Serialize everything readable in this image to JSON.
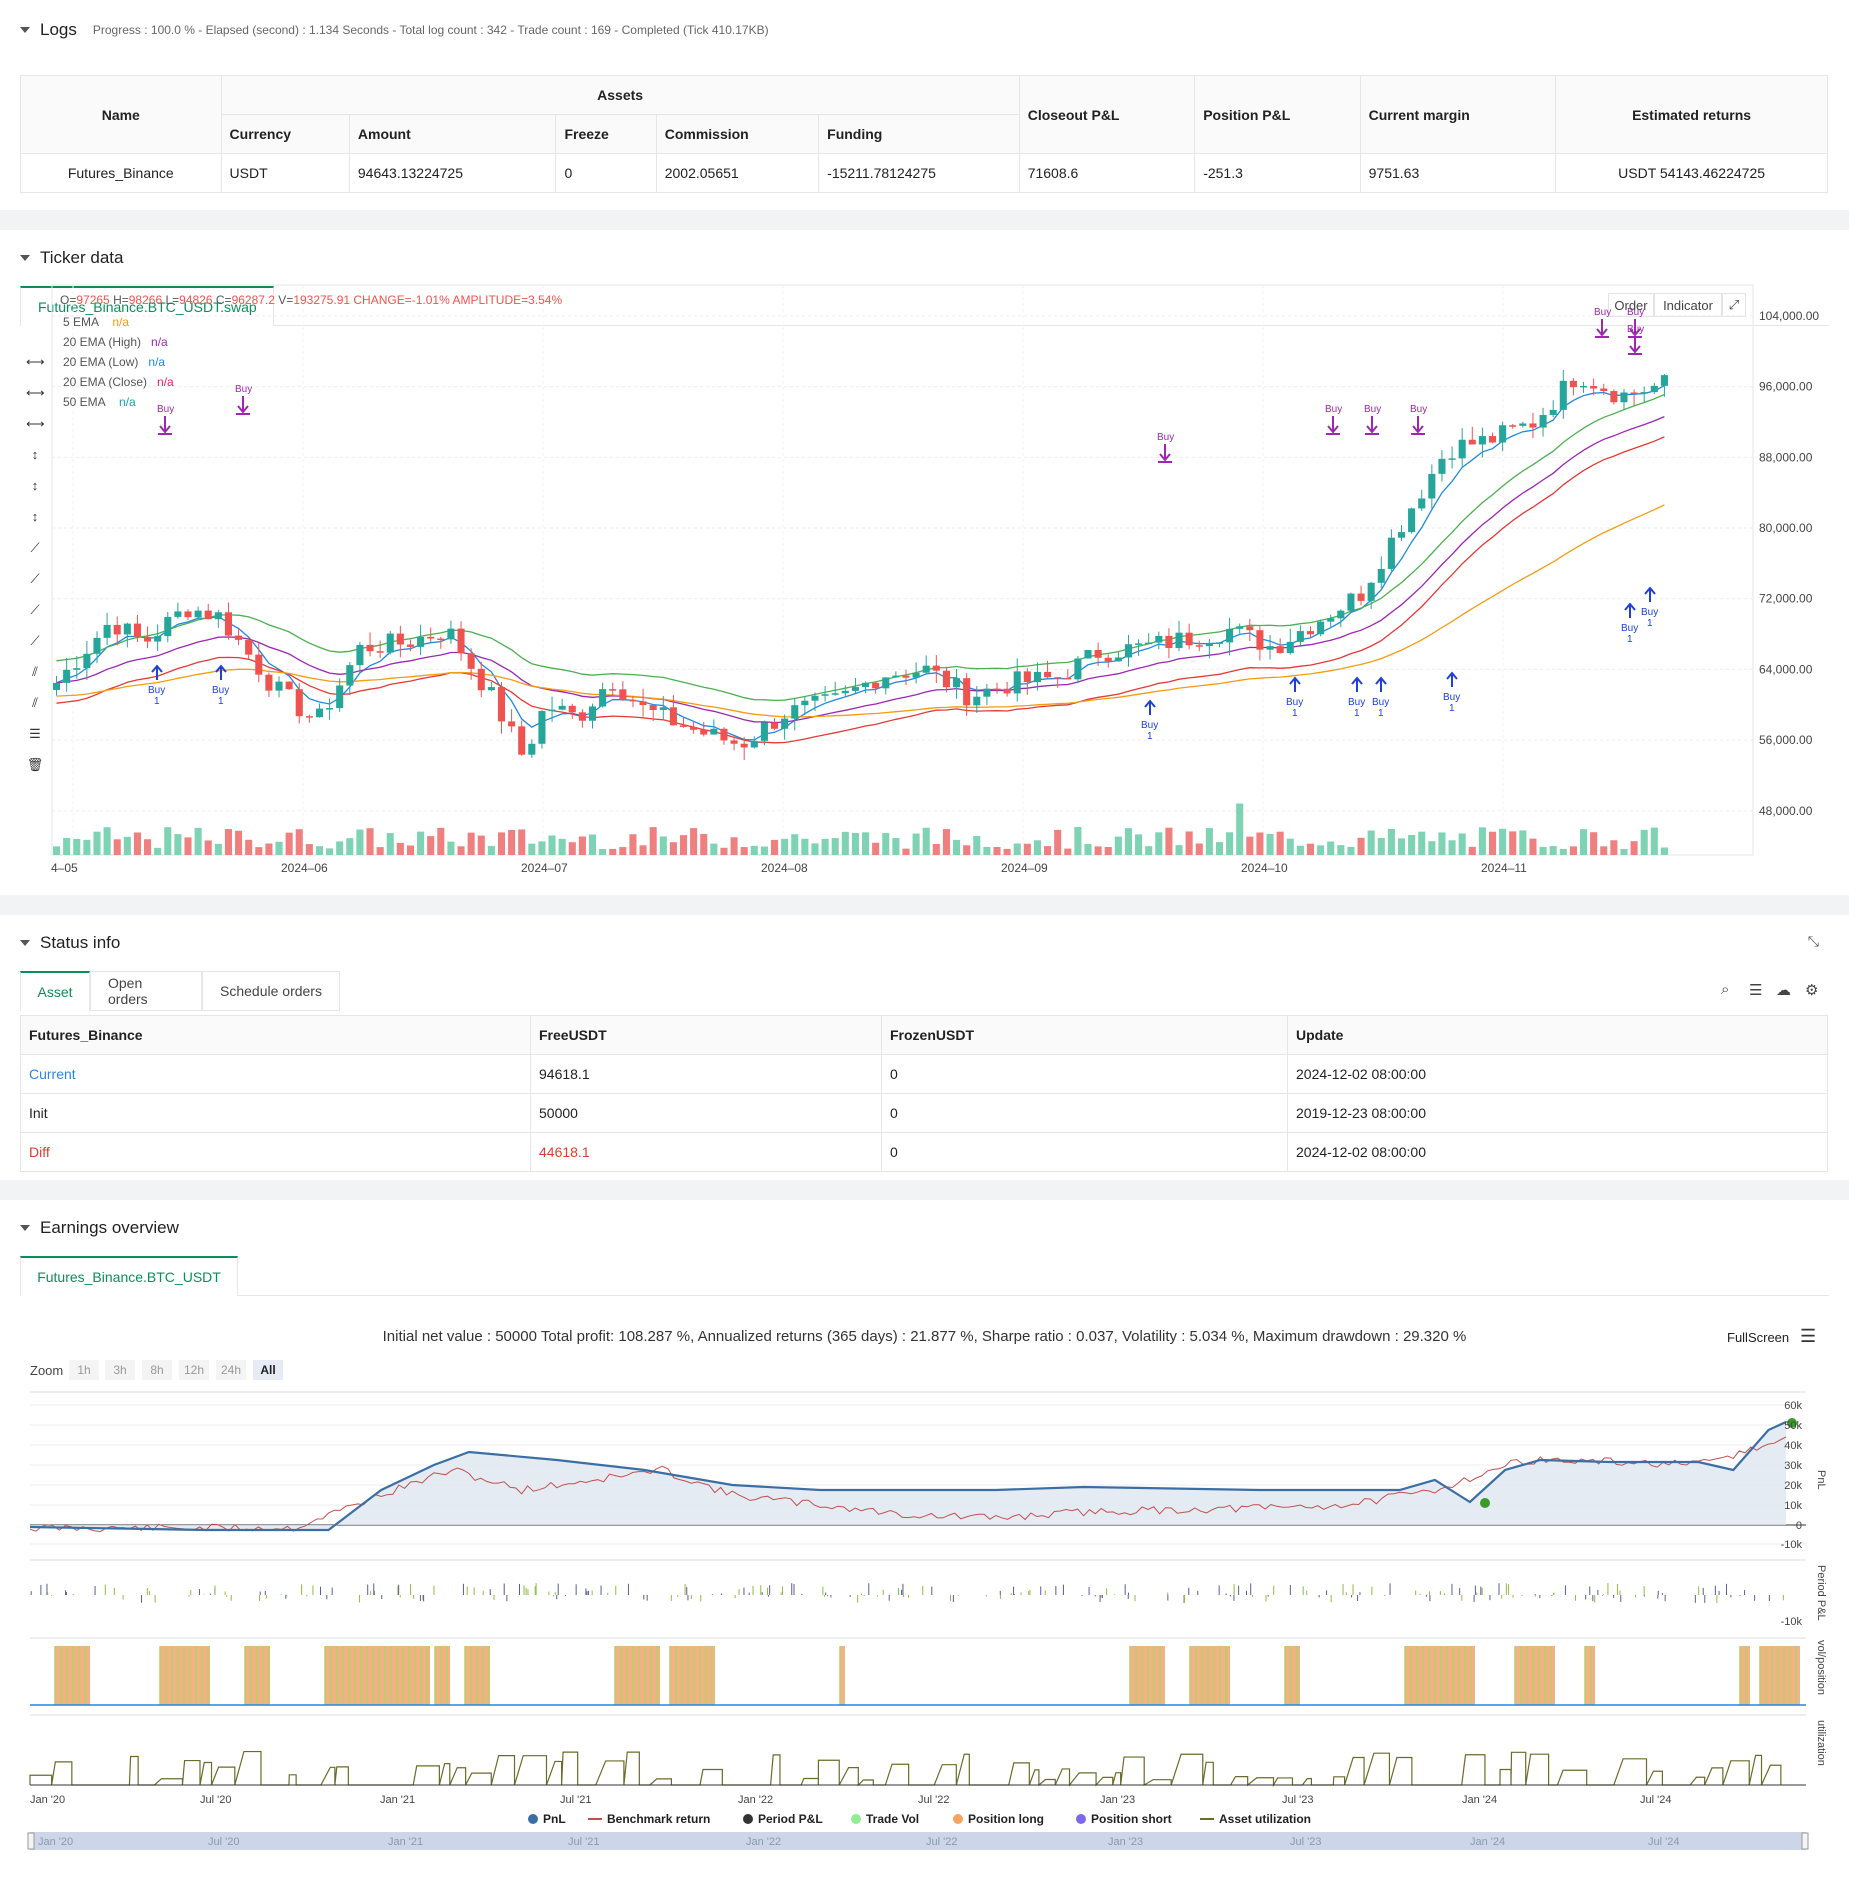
{
  "logs": {
    "title": "Logs",
    "summary": "Progress : 100.0 % - Elapsed (second) : 1.134  Seconds - Total log count : 342 - Trade count : 169 - Completed (Tick 410.17KB)",
    "table": {
      "h_name": "Name",
      "h_assets": "Assets",
      "h_closeout": "Closeout P&L",
      "h_position": "Position P&L",
      "h_margin": "Current margin",
      "h_est": "Estimated returns",
      "h_currency": "Currency",
      "h_amount": "Amount",
      "h_freeze": "Freeze",
      "h_commission": "Commission",
      "h_funding": "Funding",
      "row": {
        "name": "Futures_Binance",
        "currency": "USDT",
        "amount": "94643.13224725",
        "freeze": "0",
        "commission": "2002.05651",
        "funding": "-15211.78124275",
        "closeout": "71608.6",
        "position": "-251.3",
        "margin": "9751.63",
        "est": "USDT 54143.46224725"
      }
    }
  },
  "ticker": {
    "title": "Ticker data",
    "tab": "Futures_Binance.BTC_USDT.swap",
    "ohlc": {
      "o_label": "O=",
      "o": "97265",
      "h_label": "H=",
      "h": "98266",
      "l_label": "L=",
      "l": "94826",
      "c_label": "C=",
      "c": "96287.2",
      "v_label": "V=",
      "v": "193275.91",
      "change": "CHANGE=-1.01%",
      "amp": "AMPLITUDE=3.54%"
    },
    "legend": [
      {
        "name": "5 EMA",
        "val": "n/a",
        "color": "#f39c12"
      },
      {
        "name": "20 EMA (High)",
        "val": "n/a",
        "color": "#9b27b0"
      },
      {
        "name": "20 EMA (Low)",
        "val": "n/a",
        "color": "#1e88e5"
      },
      {
        "name": "20 EMA (Close)",
        "val": "n/a",
        "color": "#e91e63"
      },
      {
        "name": "50 EMA",
        "val": "n/a",
        "color": "#17a2b8"
      }
    ],
    "buttons": {
      "order": "Order",
      "indicator": "Indicator"
    },
    "y_ticks": [
      "104,000.00",
      "96,000.00",
      "88,000.00",
      "80,000.00",
      "72,000.00",
      "64,000.00",
      "56,000.00",
      "48,000.00"
    ],
    "x_ticks": [
      "4–05",
      "2024–06",
      "2024–07",
      "2024–08",
      "2024–09",
      "2024–10",
      "2024–11"
    ],
    "buy_label": "Buy",
    "buy_qty": "1"
  },
  "status": {
    "title": "Status info",
    "tabs": [
      "Asset",
      "Open orders",
      "Schedule orders"
    ],
    "headers": [
      "Futures_Binance",
      "FreeUSDT",
      "FrozenUSDT",
      "Update"
    ],
    "rows": [
      {
        "label": "Current",
        "free": "94618.1",
        "frozen": "0",
        "update": "2024-12-02 08:00:00"
      },
      {
        "label": "Init",
        "free": "50000",
        "frozen": "0",
        "update": "2019-12-23 08:00:00"
      },
      {
        "label": "Diff",
        "free": "44618.1",
        "frozen": "0",
        "update": "2024-12-02 08:00:00"
      }
    ]
  },
  "earnings": {
    "title": "Earnings overview",
    "tab": "Futures_Binance.BTC_USDT",
    "summary": "Initial net value : 50000 Total profit: 108.287 %, Annualized returns (365 days) : 21.877 %, Sharpe ratio : 0.037, Volatility : 5.034 %, Maximum drawdown : 29.320 %",
    "fullscreen": "FullScreen",
    "zoom_label": "Zoom",
    "zoom_buttons": [
      "1h",
      "3h",
      "8h",
      "12h",
      "24h",
      "All"
    ],
    "pnl_ticks": [
      "60k",
      "50k",
      "40k",
      "30k",
      "20k",
      "10k",
      "0",
      "-10k"
    ],
    "period_tick": "-10k",
    "axis_pnl": "PnL",
    "axis_period": "Period P&L",
    "axis_vol": "vol/position",
    "axis_util": "utilization",
    "x_ticks": [
      "Jan '20",
      "Jul '20",
      "Jan '21",
      "Jul '21",
      "Jan '22",
      "Jul '22",
      "Jan '23",
      "Jul '23",
      "Jan '24",
      "Jul '24"
    ],
    "legend": [
      {
        "name": "PnL",
        "color": "#3a6ea5"
      },
      {
        "name": "Benchmark return",
        "color": "#c0504d"
      },
      {
        "name": "Period P&L",
        "color": "#333333"
      },
      {
        "name": "Trade Vol",
        "color": "#90ee90"
      },
      {
        "name": "Position long",
        "color": "#f4a460"
      },
      {
        "name": "Position short",
        "color": "#7b68ee"
      },
      {
        "name": "Asset utilization",
        "color": "#6b6b2a"
      }
    ]
  },
  "colors": {
    "up": "#26a69a",
    "down": "#ef5350",
    "accent": "#0a8f5a",
    "buy": "#9c27b0"
  }
}
